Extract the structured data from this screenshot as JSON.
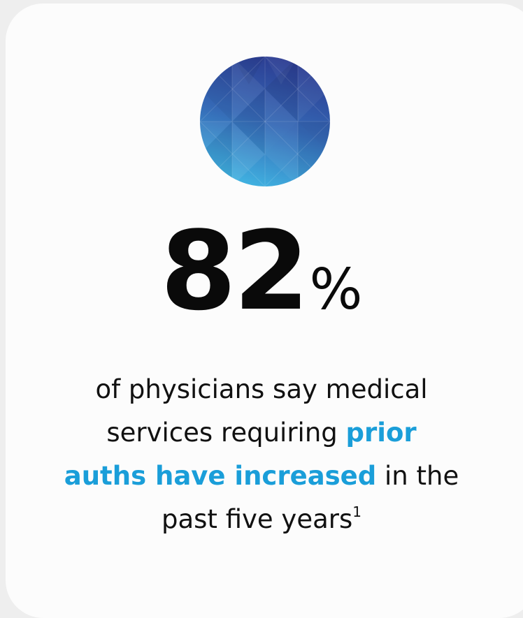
{
  "stat": {
    "value": "82",
    "unit": "%"
  },
  "description": {
    "line1": "of physicians say medical",
    "line2_prefix": "services requiring ",
    "highlight_a": "prior",
    "highlight_b": "auths have increased",
    "line3_suffix": " in the",
    "line4": "past five years",
    "footnote": "1"
  },
  "colors": {
    "highlight": "#1a9ed9",
    "emblem_top": "#2e3f94",
    "emblem_bottom": "#3fb2e0",
    "text": "#111111",
    "card": "#fcfcfc",
    "background": "#eeeeee"
  },
  "icons": {
    "emblem": "faceted-circle-icon"
  }
}
